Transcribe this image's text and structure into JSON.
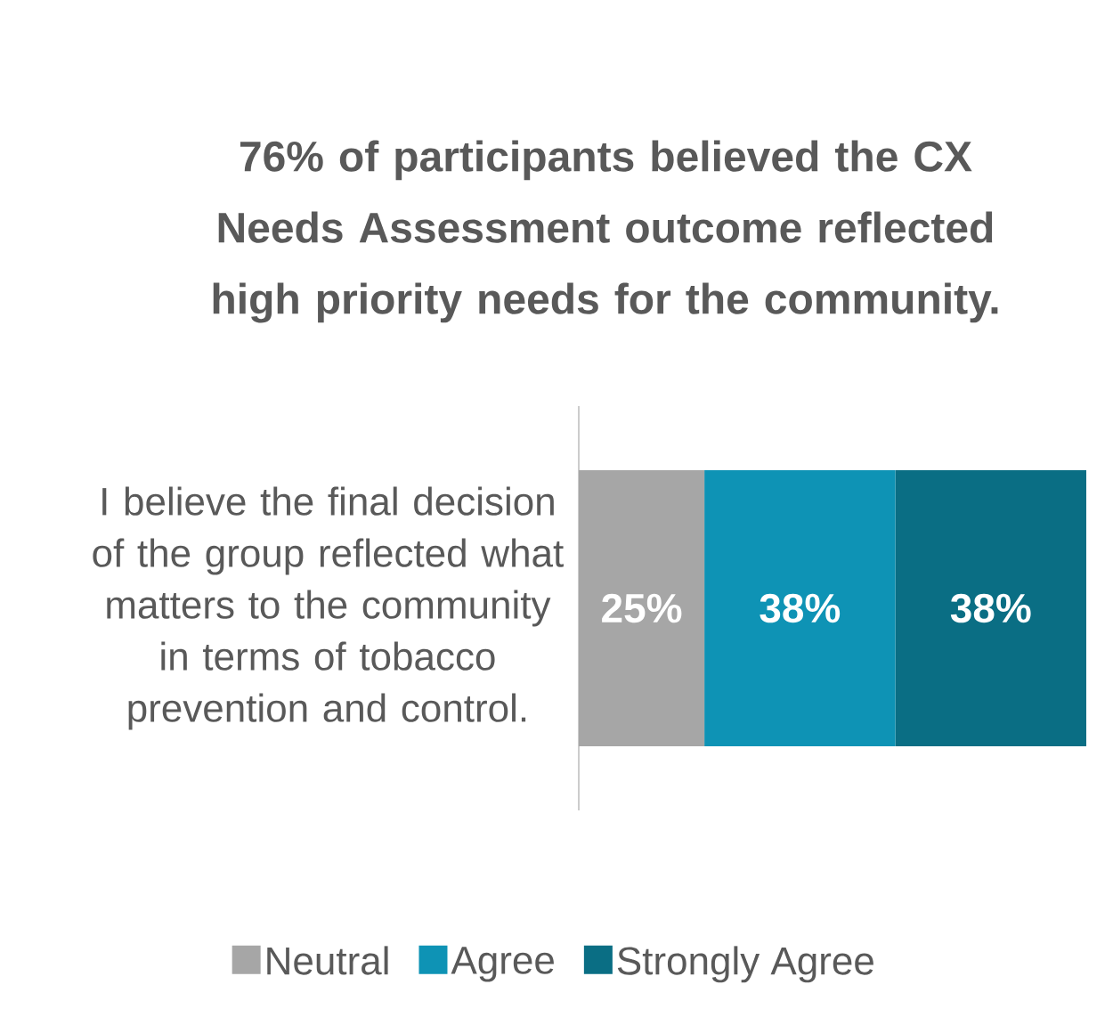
{
  "chart_data": {
    "type": "bar",
    "orientation": "horizontal",
    "stacked": true,
    "title": "76% of participants believed the CX Needs Assessment outcome reflected high priority needs for the community.",
    "categories": [
      "I believe the final decision of the group reflected what matters to the community in terms of tobacco prevention and control."
    ],
    "series": [
      {
        "name": "Neutral",
        "color": "#a6a6a6",
        "values": [
          25
        ],
        "value_labels": [
          "25%"
        ]
      },
      {
        "name": "Agree",
        "color": "#0e93b5",
        "values": [
          38
        ],
        "value_labels": [
          "38%"
        ]
      },
      {
        "name": "Strongly Agree",
        "color": "#0a6e84",
        "values": [
          38
        ],
        "value_labels": [
          "38%"
        ]
      }
    ],
    "legend": "bottom"
  }
}
